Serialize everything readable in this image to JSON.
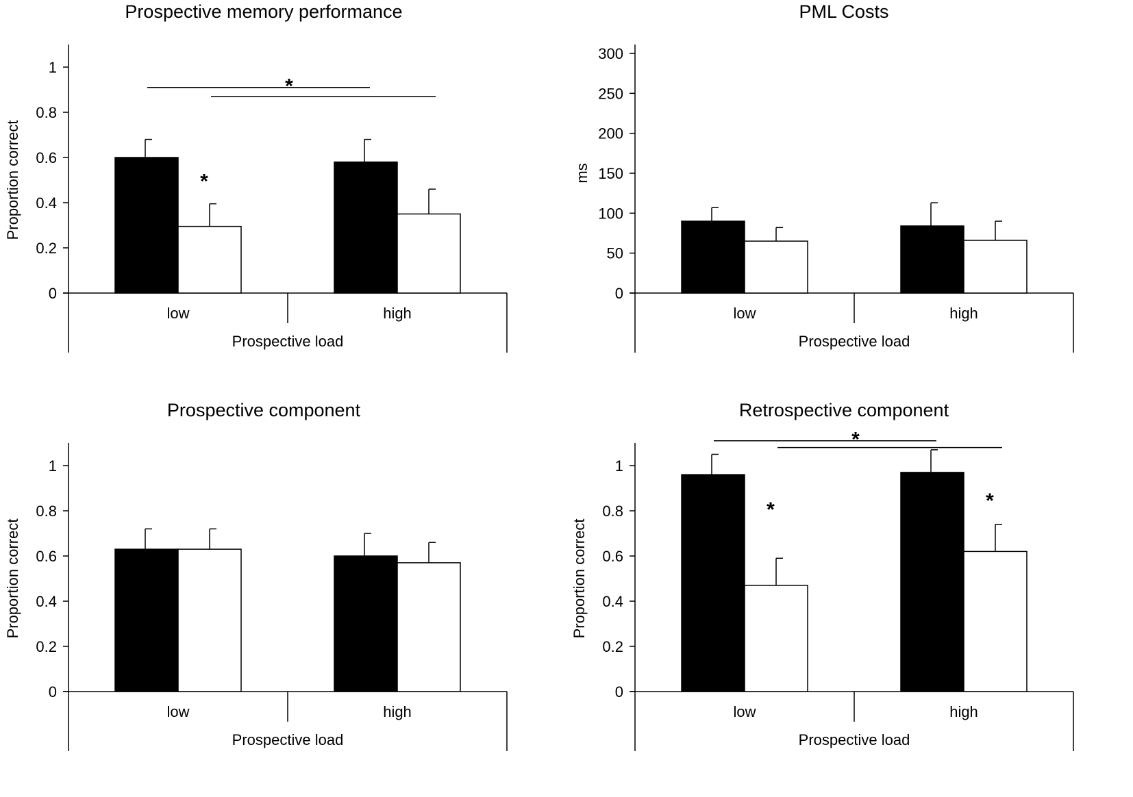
{
  "chart_data": [
    {
      "type": "bar",
      "title": "Prospective memory performance",
      "xlabel": "Prospective load",
      "ylabel": "Proportion correct",
      "categories": [
        "low",
        "high"
      ],
      "ylim": [
        0,
        1.1
      ],
      "yticks": [
        0,
        0.2,
        0.4,
        0.6,
        0.8,
        1
      ],
      "ytick_labels": [
        "0",
        "0.2",
        "0.4",
        "0.6",
        "0.8",
        "1"
      ],
      "grid": false,
      "series": [
        {
          "name": "black",
          "color": "#000000",
          "values": [
            0.6,
            0.58
          ],
          "errors": [
            0.08,
            0.1
          ]
        },
        {
          "name": "white",
          "color": "#ffffff",
          "values": [
            0.295,
            0.35
          ],
          "errors": [
            0.1,
            0.11
          ]
        }
      ],
      "annotations": [
        {
          "text": "*",
          "type": "bracket-pair",
          "y": 0.91,
          "y2": 0.87
        },
        {
          "text": "*",
          "type": "group",
          "group": 0,
          "y": 0.52
        }
      ]
    },
    {
      "type": "bar",
      "title": "PML Costs",
      "xlabel": "Prospective load",
      "ylabel": "ms",
      "categories": [
        "low",
        "high"
      ],
      "ylim": [
        0,
        310
      ],
      "yticks": [
        0,
        50,
        100,
        150,
        200,
        250,
        300
      ],
      "ytick_labels": [
        "0",
        "50",
        "100",
        "150",
        "200",
        "250",
        "300"
      ],
      "grid": false,
      "series": [
        {
          "name": "black",
          "color": "#000000",
          "values": [
            90,
            84
          ],
          "errors": [
            17,
            29
          ]
        },
        {
          "name": "white",
          "color": "#ffffff",
          "values": [
            65,
            66
          ],
          "errors": [
            17,
            24
          ]
        }
      ],
      "annotations": []
    },
    {
      "type": "bar",
      "title": "Prospective component",
      "xlabel": "Prospective load",
      "ylabel": "Proportion correct",
      "categories": [
        "low",
        "high"
      ],
      "ylim": [
        0,
        1.1
      ],
      "yticks": [
        0,
        0.2,
        0.4,
        0.6,
        0.8,
        1
      ],
      "ytick_labels": [
        "0",
        "0.2",
        "0.4",
        "0.6",
        "0.8",
        "1"
      ],
      "grid": false,
      "series": [
        {
          "name": "black",
          "color": "#000000",
          "values": [
            0.63,
            0.6
          ],
          "errors": [
            0.09,
            0.1
          ]
        },
        {
          "name": "white",
          "color": "#ffffff",
          "values": [
            0.63,
            0.57
          ],
          "errors": [
            0.09,
            0.09
          ]
        }
      ],
      "annotations": []
    },
    {
      "type": "bar",
      "title": "Retrospective component",
      "xlabel": "Prospective load",
      "ylabel": "Proportion correct",
      "categories": [
        "low",
        "high"
      ],
      "ylim": [
        0,
        1.1
      ],
      "yticks": [
        0,
        0.2,
        0.4,
        0.6,
        0.8,
        1
      ],
      "ytick_labels": [
        "0",
        "0.2",
        "0.4",
        "0.6",
        "0.8",
        "1"
      ],
      "grid": false,
      "series": [
        {
          "name": "black",
          "color": "#000000",
          "values": [
            0.96,
            0.97
          ],
          "errors": [
            0.09,
            0.1
          ]
        },
        {
          "name": "white",
          "color": "#ffffff",
          "values": [
            0.47,
            0.62
          ],
          "errors": [
            0.12,
            0.12
          ]
        }
      ],
      "annotations": [
        {
          "text": "*",
          "type": "bracket-pair",
          "y": 1.11,
          "y2": 1.08
        },
        {
          "text": "*",
          "type": "group",
          "group": 0,
          "y": 0.83
        },
        {
          "text": "*",
          "type": "group",
          "group": 1,
          "y": 0.87
        }
      ]
    }
  ]
}
